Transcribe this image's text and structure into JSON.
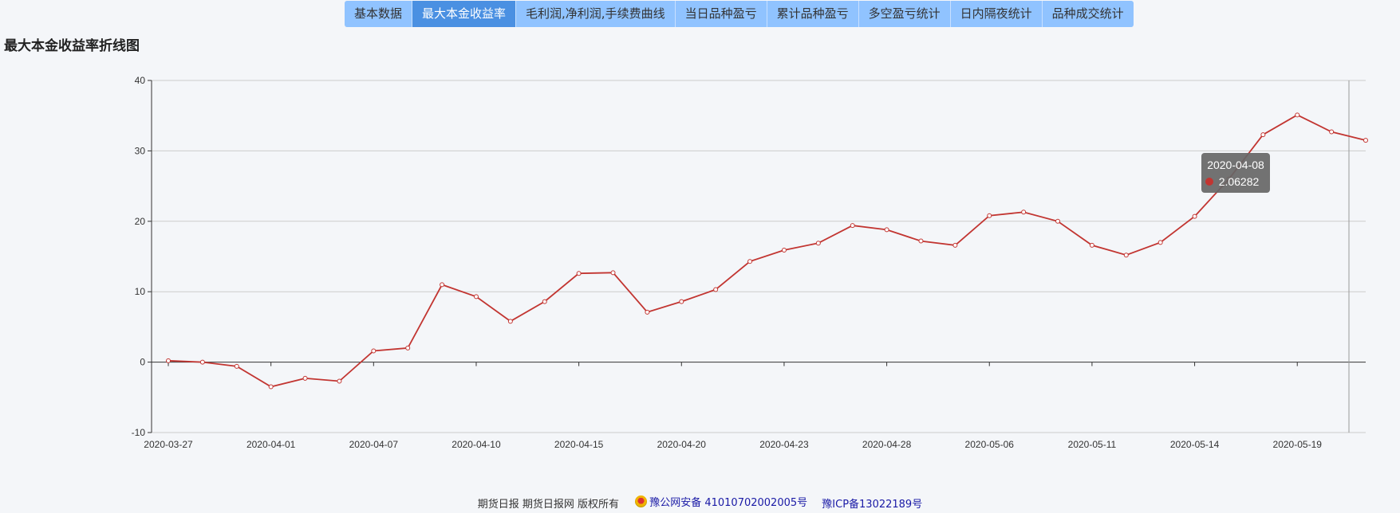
{
  "tabs": [
    {
      "label": "基本数据"
    },
    {
      "label": "最大本金收益率"
    },
    {
      "label": "毛利润,净利润,手续费曲线"
    },
    {
      "label": "当日品种盈亏"
    },
    {
      "label": "累计品种盈亏"
    },
    {
      "label": "多空盈亏统计"
    },
    {
      "label": "日内隔夜统计"
    },
    {
      "label": "品种成交统计"
    }
  ],
  "active_tab": 1,
  "page_title": "最大本金收益率折线图",
  "colors": {
    "tab_bg": "#90c3ff",
    "tab_active_bg": "#4a90e2",
    "line": "#c23531",
    "tooltip_bg": "#666666"
  },
  "chart_data": {
    "type": "line",
    "title": "",
    "xlabel": "",
    "ylabel": "",
    "ylim": [
      -10,
      40
    ],
    "yticks": [
      -10,
      0,
      10,
      20,
      30,
      40
    ],
    "grid": true,
    "x_tick_labels": [
      "2020-03-27",
      "2020-04-01",
      "2020-04-07",
      "2020-04-10",
      "2020-04-15",
      "2020-04-20",
      "2020-04-23",
      "2020-04-28",
      "2020-05-06",
      "2020-05-11",
      "2020-05-14",
      "2020-05-19"
    ],
    "x_tick_every": 3,
    "series": [
      {
        "values": [
          0.2,
          0.0,
          -0.6,
          -3.5,
          -2.3,
          -2.7,
          1.6,
          2.0,
          11.0,
          9.3,
          5.8,
          8.6,
          12.6,
          12.7,
          7.1,
          8.6,
          10.3,
          14.3,
          15.9,
          16.9,
          19.4,
          18.8,
          17.2,
          16.6,
          20.8,
          21.3,
          20.0,
          16.6,
          15.2,
          17.0,
          20.7,
          26.0,
          32.3,
          35.1,
          32.7,
          31.5
        ]
      }
    ],
    "tooltip": {
      "date": "2020-04-08",
      "value": "2.06282"
    }
  },
  "footer": {
    "copyright": "期货日报 期货日报网 版权所有",
    "police_record": "豫公网安备 41010702002005号",
    "icp": "豫ICP备13022189号"
  }
}
